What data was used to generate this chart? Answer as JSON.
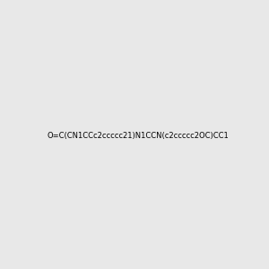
{
  "smiles": "O=C(CN1CCc2ccccc21)N1CCN(c2ccccc2OC)CC1",
  "image_size": 300,
  "background_color": "#e8e8e8",
  "bond_color": "#2d6b6b",
  "atom_colors": {
    "N": "#0000ff",
    "O": "#ff0000",
    "C": "#000000"
  },
  "title": ""
}
